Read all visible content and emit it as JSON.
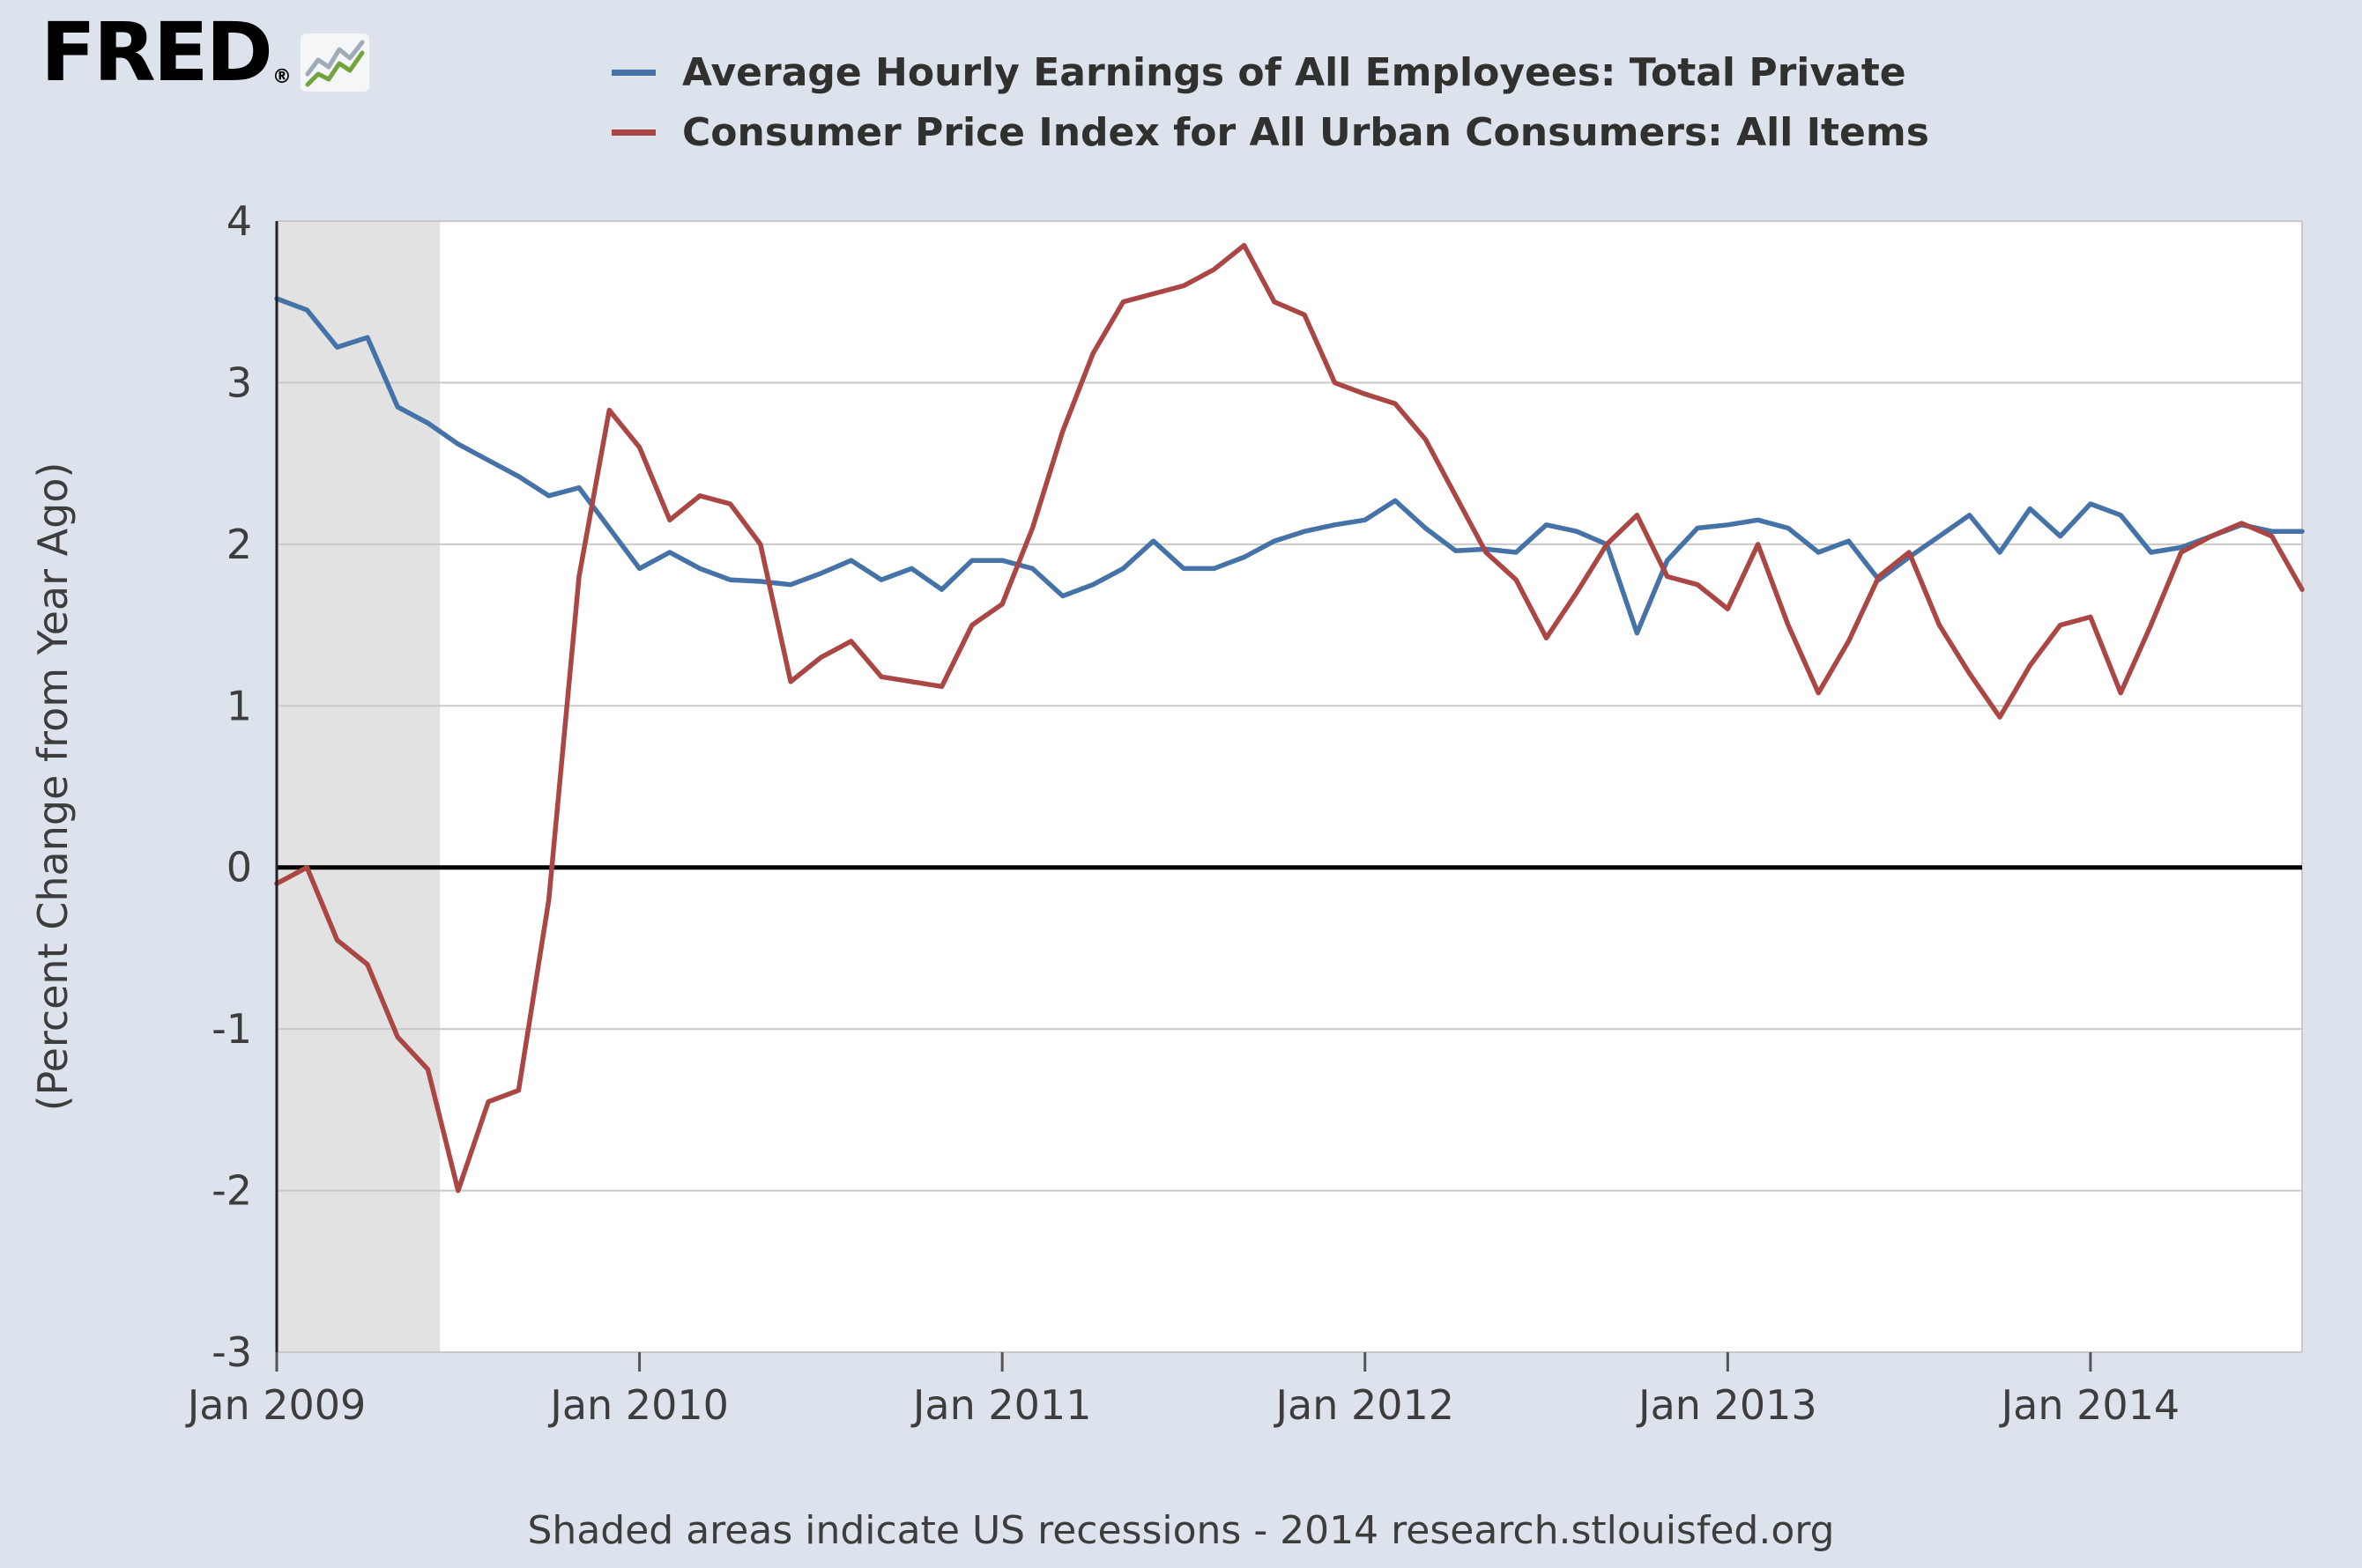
{
  "header": {
    "logo_text": "FRED",
    "logo_reg": "®"
  },
  "footer": {
    "note": "Shaded areas indicate US recessions - 2014 research.stlouisfed.org"
  },
  "chart_data": {
    "type": "line",
    "title": "",
    "xlabel": "",
    "ylabel": "(Percent Change from Year Ago)",
    "ylim": [
      -3,
      4
    ],
    "yticks": [
      4,
      3,
      2,
      1,
      0,
      -1,
      -2,
      -3
    ],
    "x_monthly_start": "2009-01",
    "x_monthly_end": "2014-08",
    "x_ticks": [
      {
        "index": 0,
        "label": "Jan 2009"
      },
      {
        "index": 12,
        "label": "Jan 2010"
      },
      {
        "index": 24,
        "label": "Jan 2011"
      },
      {
        "index": 36,
        "label": "Jan 2012"
      },
      {
        "index": 48,
        "label": "Jan 2013"
      },
      {
        "index": 60,
        "label": "Jan 2014"
      }
    ],
    "grid": true,
    "zero_line_color": "#000000",
    "recession_shading_color": "#e2e2e2",
    "recession_bands": [
      {
        "start_index": 0,
        "end_index": 5.4
      }
    ],
    "series": [
      {
        "id": "avg-hourly-earnings-line",
        "name": "Average Hourly Earnings of All Employees: Total Private",
        "color": "#4572a7",
        "values": [
          3.52,
          3.45,
          3.22,
          3.28,
          2.85,
          2.75,
          2.62,
          2.52,
          2.42,
          2.3,
          2.35,
          2.1,
          1.85,
          1.95,
          1.85,
          1.78,
          1.77,
          1.75,
          1.82,
          1.9,
          1.78,
          1.85,
          1.72,
          1.9,
          1.9,
          1.85,
          1.68,
          1.75,
          1.85,
          2.02,
          1.85,
          1.85,
          1.92,
          2.02,
          2.08,
          2.12,
          2.15,
          2.27,
          2.1,
          1.96,
          1.97,
          1.95,
          2.12,
          2.08,
          2.0,
          1.45,
          1.9,
          2.1,
          2.12,
          2.15,
          2.1,
          1.95,
          2.02,
          1.78,
          1.92,
          2.05,
          2.18,
          1.95,
          2.22,
          2.05,
          2.25,
          2.18,
          1.95,
          1.98,
          2.05,
          2.12,
          2.08,
          2.08
        ]
      },
      {
        "id": "cpi-all-items-line",
        "name": "Consumer Price Index for All Urban Consumers: All Items",
        "color": "#aa4643",
        "values": [
          -0.1,
          0.0,
          -0.45,
          -0.6,
          -1.05,
          -1.25,
          -2.0,
          -1.45,
          -1.38,
          -0.2,
          1.8,
          2.83,
          2.6,
          2.15,
          2.3,
          2.25,
          2.0,
          1.15,
          1.3,
          1.4,
          1.18,
          1.15,
          1.12,
          1.5,
          1.63,
          2.1,
          2.7,
          3.18,
          3.5,
          3.55,
          3.6,
          3.7,
          3.85,
          3.5,
          3.42,
          3.0,
          2.93,
          2.87,
          2.65,
          2.3,
          1.95,
          1.78,
          1.42,
          1.7,
          2.0,
          2.18,
          1.8,
          1.75,
          1.6,
          2.0,
          1.5,
          1.08,
          1.4,
          1.8,
          1.95,
          1.5,
          1.2,
          0.93,
          1.25,
          1.5,
          1.55,
          1.08,
          1.5,
          1.95,
          2.05,
          2.13,
          2.05,
          1.72
        ]
      }
    ]
  }
}
